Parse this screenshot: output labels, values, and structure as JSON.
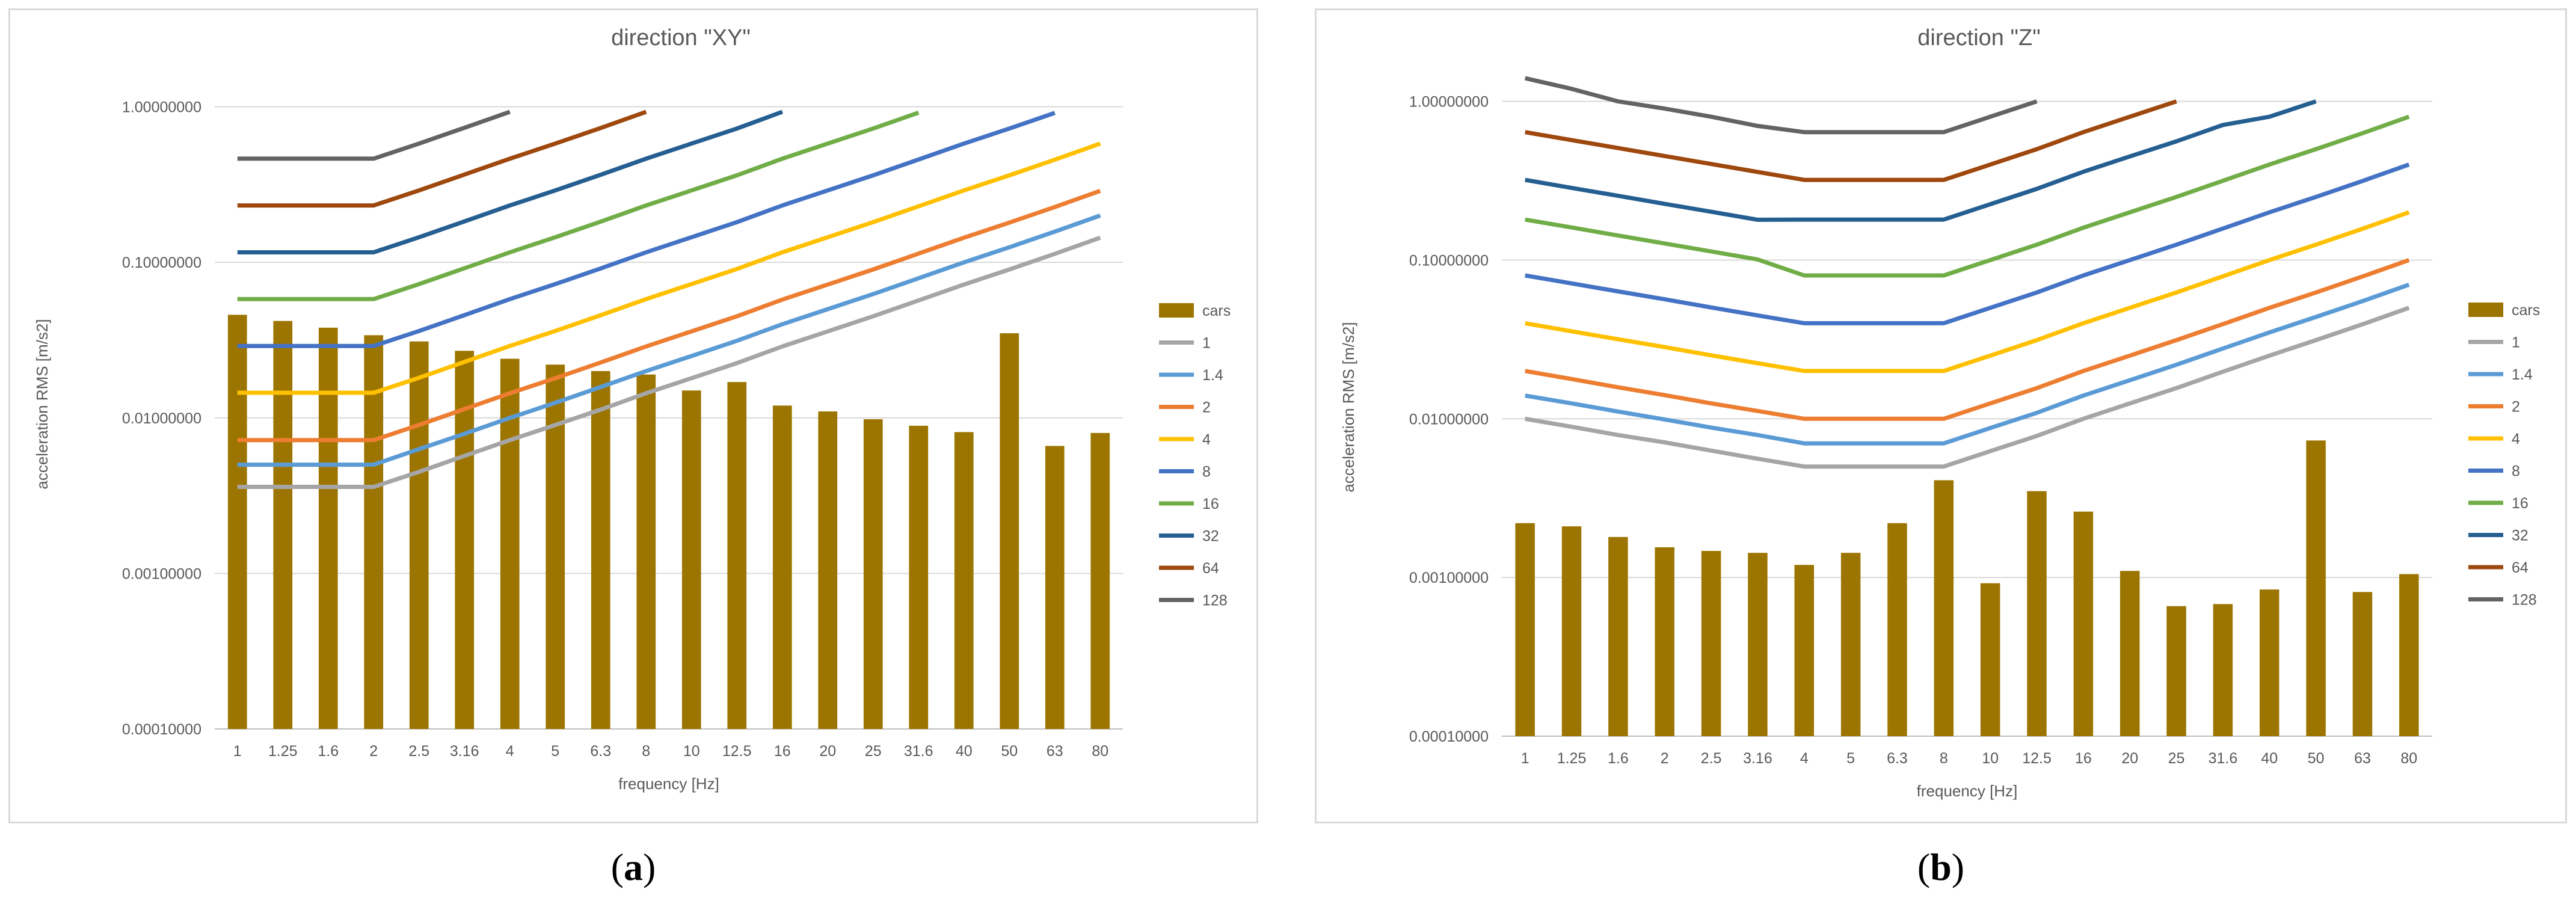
{
  "colors": {
    "cars": "#9c7500",
    "1": "#a5a5a5",
    "1.4": "#5b9bd5",
    "2": "#ed7d31",
    "4": "#ffc000",
    "8": "#4472c4",
    "16": "#70ad47",
    "32": "#255e91",
    "64": "#9e480e",
    "128": "#636363",
    "grid": "#d9d9d9",
    "axis": "#bfbfbf"
  },
  "chart_data": [
    {
      "id": "a",
      "type": "bar+line",
      "title": "direction \"XY\"",
      "xlabel": "frequency [Hz]",
      "ylabel": "acceleration RMS [m/s2]",
      "yscale": "log",
      "ylim": [
        0.0001,
        1.5
      ],
      "yticks": [
        "1.00000000",
        "0.10000000",
        "0.01000000",
        "0.00100000",
        "0.00010000"
      ],
      "categories": [
        "1",
        "1.25",
        "1.6",
        "2",
        "2.5",
        "3.16",
        "4",
        "5",
        "6.3",
        "8",
        "10",
        "12.5",
        "16",
        "20",
        "25",
        "31.6",
        "40",
        "50",
        "63",
        "80"
      ],
      "bar_series": {
        "name": "cars",
        "values": [
          0.046,
          0.042,
          0.038,
          0.034,
          0.031,
          0.027,
          0.024,
          0.022,
          0.02,
          0.019,
          0.015,
          0.017,
          0.012,
          0.011,
          0.0098,
          0.0089,
          0.0081,
          0.035,
          0.0066,
          0.008
        ]
      },
      "line_series": [
        {
          "name": "1",
          "values": [
            0.0036,
            0.0036,
            0.0036,
            0.0036,
            0.0045,
            0.0057,
            0.0072,
            0.009,
            0.0113,
            0.0144,
            0.018,
            0.0225,
            0.0288,
            0.036,
            0.045,
            0.0569,
            0.072,
            0.09,
            0.1134,
            0.144
          ]
        },
        {
          "name": "1.4",
          "values": [
            0.005,
            0.005,
            0.005,
            0.005,
            0.0063,
            0.0079,
            0.01,
            0.0125,
            0.0158,
            0.02,
            0.025,
            0.0313,
            0.04,
            0.05,
            0.0625,
            0.079,
            0.1,
            0.125,
            0.1575,
            0.2
          ]
        },
        {
          "name": "2",
          "values": [
            0.0072,
            0.0072,
            0.0072,
            0.0072,
            0.009,
            0.0114,
            0.0144,
            0.018,
            0.0227,
            0.0288,
            0.036,
            0.045,
            0.0576,
            0.072,
            0.09,
            0.1138,
            0.144,
            0.18,
            0.2268,
            0.288
          ]
        },
        {
          "name": "4",
          "values": [
            0.0145,
            0.0145,
            0.0145,
            0.0145,
            0.0181,
            0.0229,
            0.029,
            0.0362,
            0.0457,
            0.058,
            0.0725,
            0.0906,
            0.116,
            0.145,
            0.1813,
            0.2291,
            0.29,
            0.3625,
            0.4568,
            0.58
          ]
        },
        {
          "name": "8",
          "values": [
            0.029,
            0.029,
            0.029,
            0.029,
            0.0362,
            0.0458,
            0.058,
            0.0725,
            0.0914,
            0.116,
            0.145,
            0.1813,
            0.232,
            0.29,
            0.3625,
            0.4582,
            0.58,
            0.725,
            0.9135,
            null
          ]
        },
        {
          "name": "16",
          "values": [
            0.058,
            0.058,
            0.058,
            0.058,
            0.0725,
            0.0916,
            0.116,
            0.145,
            0.1827,
            0.232,
            0.29,
            0.3625,
            0.464,
            0.58,
            0.725,
            0.9164,
            null,
            null,
            null,
            null
          ]
        },
        {
          "name": "32",
          "values": [
            0.116,
            0.116,
            0.116,
            0.116,
            0.145,
            0.1833,
            0.232,
            0.29,
            0.3654,
            0.464,
            0.58,
            0.725,
            0.928,
            null,
            null,
            null,
            null,
            null,
            null,
            null
          ]
        },
        {
          "name": "64",
          "values": [
            0.232,
            0.232,
            0.232,
            0.232,
            0.29,
            0.3666,
            0.464,
            0.58,
            0.7308,
            0.928,
            null,
            null,
            null,
            null,
            null,
            null,
            null,
            null,
            null,
            null
          ]
        },
        {
          "name": "128",
          "values": [
            0.464,
            0.464,
            0.464,
            0.464,
            0.58,
            0.7332,
            0.928,
            null,
            null,
            null,
            null,
            null,
            null,
            null,
            null,
            null,
            null,
            null,
            null,
            null
          ]
        }
      ],
      "legend": [
        "cars",
        "1",
        "1.4",
        "2",
        "4",
        "8",
        "16",
        "32",
        "64",
        "128"
      ],
      "legend_position": "right"
    },
    {
      "id": "b",
      "type": "bar+line",
      "title": "direction \"Z\"",
      "xlabel": "frequency [Hz]",
      "ylabel": "acceleration RMS [m/s2]",
      "yscale": "log",
      "ylim": [
        0.0001,
        1.4
      ],
      "yticks": [
        "1.00000000",
        "0.10000000",
        "0.01000000",
        "0.00100000",
        "0.00010000"
      ],
      "categories": [
        "1",
        "1.25",
        "1.6",
        "2",
        "2.5",
        "3.16",
        "4",
        "5",
        "6.3",
        "8",
        "10",
        "12.5",
        "16",
        "20",
        "25",
        "31.6",
        "40",
        "50",
        "63",
        "80"
      ],
      "bar_series": {
        "name": "cars",
        "values": [
          0.0022,
          0.0021,
          0.0018,
          0.00155,
          0.00147,
          0.00143,
          0.0012,
          0.00143,
          0.0022,
          0.0041,
          0.00092,
          0.0035,
          0.0026,
          0.0011,
          0.00066,
          0.00068,
          0.00084,
          0.0073,
          0.00081,
          0.00105
        ]
      },
      "line_series": [
        {
          "name": "1",
          "values": [
            0.01,
            0.0089,
            0.0079,
            0.0071,
            0.0063,
            0.0056,
            0.005,
            0.005,
            0.005,
            0.005,
            0.00625,
            0.0078,
            0.01,
            0.0125,
            0.0156,
            0.0198,
            0.025,
            0.0313,
            0.0394,
            0.05
          ]
        },
        {
          "name": "1.4",
          "values": [
            0.014,
            0.0125,
            0.0111,
            0.0099,
            0.0088,
            0.0079,
            0.007,
            0.007,
            0.007,
            0.007,
            0.00875,
            0.0109,
            0.014,
            0.0175,
            0.0219,
            0.0277,
            0.035,
            0.0438,
            0.0551,
            0.07
          ]
        },
        {
          "name": "2",
          "values": [
            0.02,
            0.0178,
            0.0158,
            0.0141,
            0.0125,
            0.0112,
            0.01,
            0.01,
            0.01,
            0.01,
            0.0125,
            0.0156,
            0.02,
            0.025,
            0.0313,
            0.0395,
            0.05,
            0.0625,
            0.0788,
            0.1
          ]
        },
        {
          "name": "4",
          "values": [
            0.04,
            0.0356,
            0.0317,
            0.0283,
            0.0251,
            0.0224,
            0.02,
            0.02,
            0.02,
            0.02,
            0.025,
            0.0313,
            0.04,
            0.05,
            0.0625,
            0.079,
            0.1,
            0.125,
            0.1575,
            0.2
          ]
        },
        {
          "name": "8",
          "values": [
            0.08,
            0.0713,
            0.0635,
            0.0566,
            0.0503,
            0.0448,
            0.04,
            0.04,
            0.04,
            0.04,
            0.05,
            0.0625,
            0.08,
            0.1,
            0.125,
            0.158,
            0.2,
            0.25,
            0.315,
            0.4
          ]
        },
        {
          "name": "16",
          "values": [
            0.18,
            0.1605,
            0.1428,
            0.1272,
            0.1133,
            0.1009,
            0.08,
            0.08,
            0.08,
            0.08,
            0.1,
            0.125,
            0.16,
            0.2,
            0.25,
            0.316,
            0.4,
            0.5,
            0.63,
            0.8
          ]
        },
        {
          "name": "32",
          "values": [
            0.32,
            0.2851,
            0.2539,
            0.2262,
            0.2015,
            0.1795,
            0.18,
            0.18,
            0.18,
            0.18,
            0.225,
            0.281,
            0.36,
            0.45,
            0.56,
            0.71,
            0.8,
            1.0,
            null,
            null
          ]
        },
        {
          "name": "64",
          "values": [
            0.64,
            0.5702,
            0.5079,
            0.4525,
            0.4031,
            0.3591,
            0.32,
            0.32,
            0.32,
            0.32,
            0.4,
            0.5,
            0.64,
            0.8,
            1.0,
            null,
            null,
            null,
            null,
            null
          ]
        },
        {
          "name": "128",
          "values": [
            1.4,
            1.2,
            1.0,
            0.9,
            0.8,
            0.7,
            0.64,
            0.64,
            0.64,
            0.64,
            0.8,
            1.0,
            null,
            null,
            null,
            null,
            null,
            null,
            null,
            null
          ]
        }
      ],
      "legend": [
        "cars",
        "1",
        "1.4",
        "2",
        "4",
        "8",
        "16",
        "32",
        "64",
        "128"
      ],
      "legend_position": "right"
    }
  ],
  "captions": {
    "a_open": "(",
    "a_letter": "a",
    "a_close": ")",
    "b_open": "(",
    "b_letter": "b",
    "b_close": ")"
  }
}
